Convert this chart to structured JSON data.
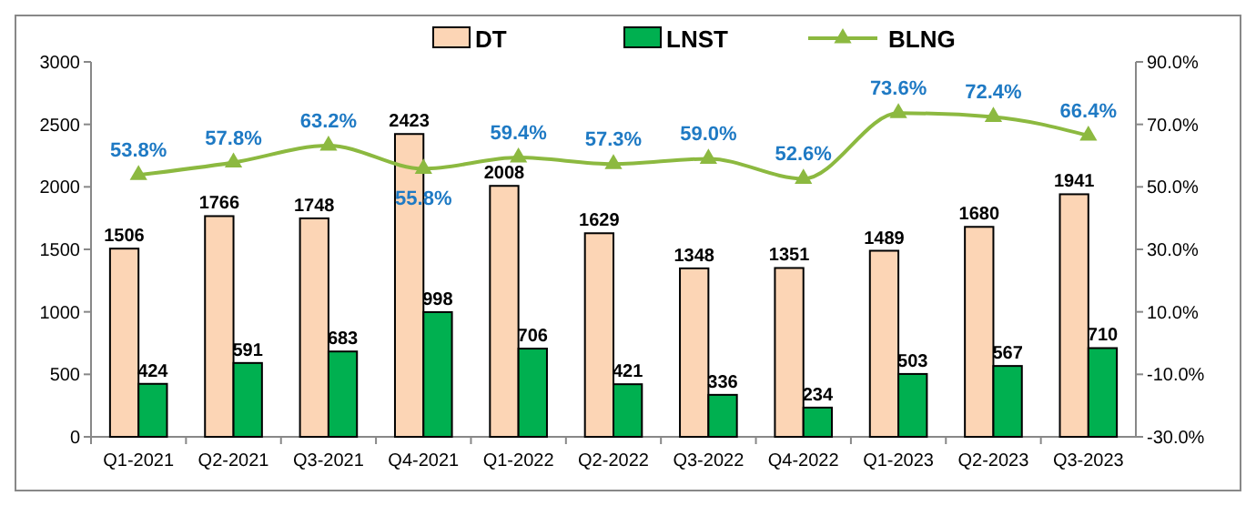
{
  "chart_data": {
    "type": "bar",
    "categories": [
      "Q1-2021",
      "Q2-2021",
      "Q3-2021",
      "Q4-2021",
      "Q1-2022",
      "Q2-2022",
      "Q3-2022",
      "Q4-2022",
      "Q1-2023",
      "Q2-2023",
      "Q3-2023"
    ],
    "series": [
      {
        "name": "DT",
        "color": "#fcd5b5",
        "values": [
          1506,
          1766,
          1748,
          2423,
          2008,
          1629,
          1348,
          1351,
          1489,
          1680,
          1941
        ]
      },
      {
        "name": "LNST",
        "color": "#00b050",
        "values": [
          424,
          591,
          683,
          998,
          706,
          421,
          336,
          234,
          503,
          567,
          710
        ]
      },
      {
        "name": "BLNG",
        "type": "line",
        "axis": "y2",
        "color": "#8cb940",
        "marker": "triangle",
        "value_labels": [
          "53.8%",
          "57.8%",
          "63.2%",
          "55.8%",
          "59.4%",
          "57.3%",
          "59.0%",
          "52.6%",
          "73.6%",
          "72.4%",
          "66.4%"
        ],
        "values": [
          53.8,
          57.8,
          63.2,
          55.8,
          59.4,
          57.3,
          59.0,
          52.6,
          73.6,
          72.4,
          66.4
        ]
      }
    ],
    "ylim": [
      0,
      3000
    ],
    "yticks": [
      0,
      500,
      1000,
      1500,
      2000,
      2500,
      3000
    ],
    "y2lim": [
      -30,
      90
    ],
    "y2ticks": [
      {
        "value": -30,
        "label": "-30.0%"
      },
      {
        "value": -10,
        "label": "-10.0%"
      },
      {
        "value": 10,
        "label": "10.0%"
      },
      {
        "value": 30,
        "label": "30.0%"
      },
      {
        "value": 50,
        "label": "50.0%"
      },
      {
        "value": 70,
        "label": "70.0%"
      },
      {
        "value": 90,
        "label": "90.0%"
      }
    ],
    "data_labels": true,
    "legend": "top",
    "grid": false
  }
}
